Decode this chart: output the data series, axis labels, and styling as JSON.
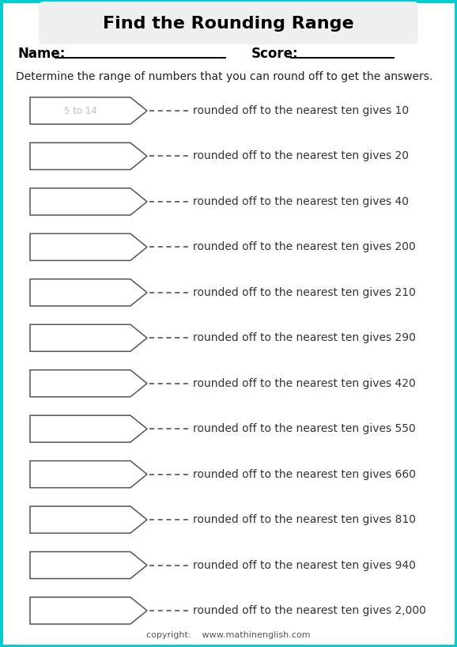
{
  "title": "Find the Rounding Range",
  "name_label": "Name:",
  "score_label": "Score:",
  "instruction": "Determine the range of numbers that you can round off to get the answers.",
  "answer_labels": [
    "10",
    "20",
    "40",
    "200",
    "210",
    "290",
    "420",
    "550",
    "660",
    "810",
    "940",
    "2,000"
  ],
  "example_text": "5 to 14",
  "row_text": "rounded off to the nearest ten gives ",
  "copyright": "copyright:    www.mathinenglish.com",
  "bg_color": "#ffffff",
  "border_color": "#00cccc",
  "title_bg": "#efefef",
  "shape_color": "#555555",
  "text_color": "#333333",
  "example_color": "#c0c0c0",
  "fig_width": 5.78,
  "fig_height": 8.18,
  "dpi": 100,
  "title_fontsize": 16,
  "name_fontsize": 12,
  "instruction_fontsize": 10,
  "row_fontsize": 10,
  "copy_fontsize": 8
}
